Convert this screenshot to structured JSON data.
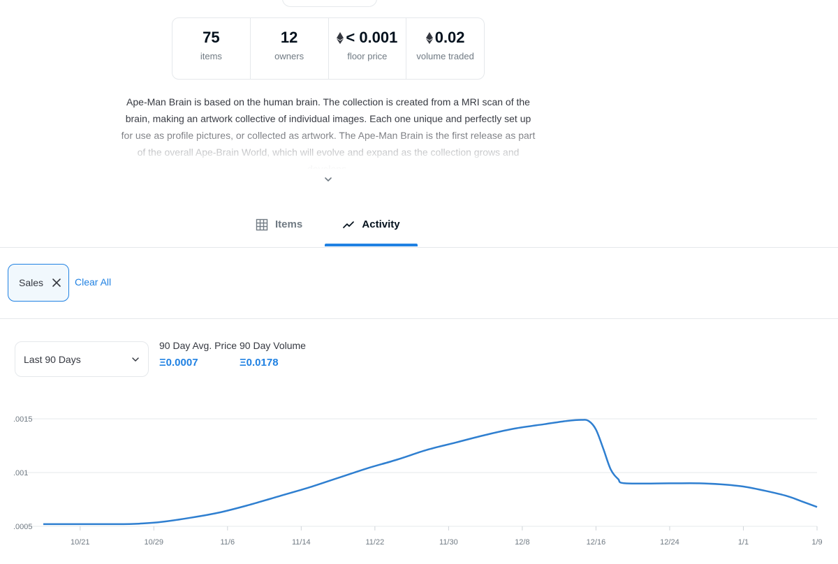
{
  "stats": [
    {
      "value": "75",
      "label": "items",
      "eth": false
    },
    {
      "value": "12",
      "label": "owners",
      "eth": false
    },
    {
      "value": "< 0.001",
      "label": "floor price",
      "eth": true
    },
    {
      "value": "0.02",
      "label": "volume traded",
      "eth": true
    }
  ],
  "description": "Ape-Man Brain is based on the human brain. The collection is created from a MRI scan of the brain, making an artwork collective of individual images. Each one unique and perfectly set up for use as profile pictures, or collected as artwork. The Ape-Man Brain is the first release as part of the overall Ape-Brain World, which will evolve and expand as the collection grows and develops.",
  "tabs": [
    {
      "label": "Items",
      "icon": "grid-icon",
      "active": false
    },
    {
      "label": "Activity",
      "icon": "activity-chart-icon",
      "active": true
    }
  ],
  "filters": {
    "chips": [
      "Sales"
    ],
    "clear_all": "Clear All"
  },
  "period_select": {
    "value": "Last 90 Days"
  },
  "metrics": {
    "avg_price_label": "90 Day Avg. Price",
    "avg_price_value": "Ξ0.0007",
    "volume_label": "90 Day Volume",
    "volume_value": "Ξ0.0178"
  },
  "colors": {
    "accent": "#2081e2",
    "line": "#2f7fd0",
    "grid": "#e5e8eb"
  },
  "chart_data": {
    "type": "line",
    "x_tick_labels": [
      "10/21",
      "10/29",
      "11/6",
      "11/14",
      "11/22",
      "11/30",
      "12/8",
      "12/16",
      "12/24",
      "1/1",
      "1/9"
    ],
    "y_tick_labels": [
      ".0015",
      ".001",
      ".0005"
    ],
    "y_ticks": [
      0.0015,
      0.001,
      0.0005
    ],
    "ylim": [
      0.0005,
      0.0015
    ],
    "series": [
      {
        "points": [
          [
            -5,
            0.00052
          ],
          [
            0,
            0.00052
          ],
          [
            5,
            0.00052
          ],
          [
            8,
            0.000525
          ],
          [
            11,
            0.00054
          ],
          [
            15,
            0.00058
          ],
          [
            19,
            0.00063
          ],
          [
            23,
            0.0007
          ],
          [
            27,
            0.00078
          ],
          [
            31,
            0.00086
          ],
          [
            35,
            0.00095
          ],
          [
            39,
            0.00104
          ],
          [
            43,
            0.00112
          ],
          [
            47,
            0.00121
          ],
          [
            51,
            0.00128
          ],
          [
            55,
            0.00135
          ],
          [
            59,
            0.00141
          ],
          [
            63,
            0.00145
          ],
          [
            66,
            0.00148
          ],
          [
            68,
            0.00149
          ],
          [
            69,
            0.00148
          ],
          [
            70,
            0.0014
          ],
          [
            71,
            0.00122
          ],
          [
            72,
            0.00103
          ],
          [
            73,
            0.00094
          ],
          [
            74,
            0.0009
          ],
          [
            80,
            0.0009
          ],
          [
            84,
            0.0009
          ],
          [
            87,
            0.00089
          ],
          [
            90,
            0.00087
          ],
          [
            93,
            0.00083
          ],
          [
            96,
            0.00078
          ],
          [
            98,
            0.00073
          ],
          [
            100,
            0.00068
          ]
        ]
      }
    ],
    "grid": true
  }
}
